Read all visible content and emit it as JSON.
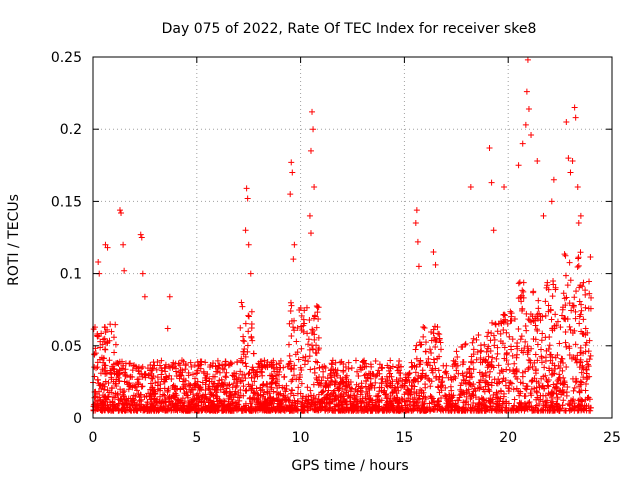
{
  "chart_data": {
    "type": "scatter",
    "title": "Day 075 of 2022, Rate Of TEC Index for receiver ske8",
    "xlabel": "GPS time / hours",
    "ylabel": "ROTI / TECUs",
    "xlim": [
      0,
      25
    ],
    "ylim": [
      0,
      0.25
    ],
    "xticks": [
      0,
      5,
      10,
      15,
      20,
      25
    ],
    "xtick_labels": [
      "0",
      "5",
      "10",
      "15",
      "20",
      "25"
    ],
    "yticks": [
      0,
      0.05,
      0.1,
      0.15,
      0.2,
      0.25
    ],
    "ytick_labels": [
      "0",
      "0.05",
      "0.1",
      "0.15",
      "0.2",
      "0.25"
    ],
    "grid": true,
    "marker": "+",
    "color": "#ff0000",
    "series": [
      {
        "name": "ROTI",
        "x_range_hours": [
          0,
          24
        ],
        "typical_baseline": [
          0.005,
          0.04
        ],
        "outliers": [
          {
            "x": 0.25,
            "y": 0.108
          },
          {
            "x": 0.3,
            "y": 0.1
          },
          {
            "x": 0.6,
            "y": 0.12
          },
          {
            "x": 0.7,
            "y": 0.118
          },
          {
            "x": 1.3,
            "y": 0.144
          },
          {
            "x": 1.35,
            "y": 0.142
          },
          {
            "x": 1.5,
            "y": 0.102
          },
          {
            "x": 1.45,
            "y": 0.12
          },
          {
            "x": 2.3,
            "y": 0.127
          },
          {
            "x": 2.35,
            "y": 0.125
          },
          {
            "x": 2.5,
            "y": 0.084
          },
          {
            "x": 2.4,
            "y": 0.1
          },
          {
            "x": 3.7,
            "y": 0.084
          },
          {
            "x": 3.6,
            "y": 0.062
          },
          {
            "x": 7.4,
            "y": 0.159
          },
          {
            "x": 7.45,
            "y": 0.152
          },
          {
            "x": 7.35,
            "y": 0.13
          },
          {
            "x": 7.5,
            "y": 0.12
          },
          {
            "x": 7.6,
            "y": 0.1
          },
          {
            "x": 9.55,
            "y": 0.177
          },
          {
            "x": 9.6,
            "y": 0.17
          },
          {
            "x": 9.5,
            "y": 0.155
          },
          {
            "x": 9.7,
            "y": 0.12
          },
          {
            "x": 9.65,
            "y": 0.11
          },
          {
            "x": 10.55,
            "y": 0.212
          },
          {
            "x": 10.6,
            "y": 0.2
          },
          {
            "x": 10.5,
            "y": 0.185
          },
          {
            "x": 10.65,
            "y": 0.16
          },
          {
            "x": 10.45,
            "y": 0.14
          },
          {
            "x": 10.5,
            "y": 0.128
          },
          {
            "x": 15.6,
            "y": 0.144
          },
          {
            "x": 15.55,
            "y": 0.135
          },
          {
            "x": 15.65,
            "y": 0.122
          },
          {
            "x": 15.7,
            "y": 0.105
          },
          {
            "x": 16.4,
            "y": 0.115
          },
          {
            "x": 16.5,
            "y": 0.106
          },
          {
            "x": 18.2,
            "y": 0.16
          },
          {
            "x": 19.1,
            "y": 0.187
          },
          {
            "x": 19.2,
            "y": 0.163
          },
          {
            "x": 19.3,
            "y": 0.13
          },
          {
            "x": 19.8,
            "y": 0.16
          },
          {
            "x": 20.5,
            "y": 0.175
          },
          {
            "x": 20.7,
            "y": 0.19
          },
          {
            "x": 20.95,
            "y": 0.248
          },
          {
            "x": 20.9,
            "y": 0.226
          },
          {
            "x": 21.0,
            "y": 0.214
          },
          {
            "x": 20.85,
            "y": 0.203
          },
          {
            "x": 21.1,
            "y": 0.196
          },
          {
            "x": 21.4,
            "y": 0.178
          },
          {
            "x": 21.7,
            "y": 0.14
          },
          {
            "x": 22.2,
            "y": 0.165
          },
          {
            "x": 22.1,
            "y": 0.15
          },
          {
            "x": 22.8,
            "y": 0.205
          },
          {
            "x": 22.9,
            "y": 0.18
          },
          {
            "x": 23.0,
            "y": 0.17
          },
          {
            "x": 23.2,
            "y": 0.215
          },
          {
            "x": 23.25,
            "y": 0.208
          },
          {
            "x": 23.1,
            "y": 0.178
          },
          {
            "x": 23.35,
            "y": 0.16
          },
          {
            "x": 23.5,
            "y": 0.14
          },
          {
            "x": 23.4,
            "y": 0.135
          }
        ]
      }
    ]
  }
}
